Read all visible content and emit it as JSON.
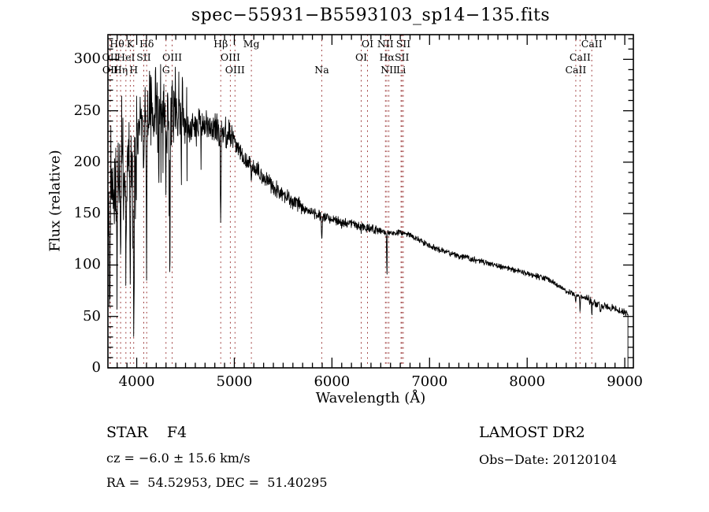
{
  "title": "spec−55931−B5593103_sp14−135.fits",
  "colors": {
    "background": "#ffffff",
    "curve": "#000000",
    "frame": "#000000",
    "text": "#000000",
    "line_marker": "#993333"
  },
  "axes": {
    "xlabel": "Wavelength (Å)",
    "ylabel": "Flux (relative)",
    "x_tick_labels": [
      "4000",
      "5000",
      "6000",
      "7000",
      "8000",
      "9000"
    ],
    "y_tick_labels": [
      "0",
      "50",
      "100",
      "150",
      "200",
      "250",
      "300"
    ]
  },
  "spectral_line_markers": [
    {
      "label": "Hθ",
      "wl": 3798,
      "row": 0
    },
    {
      "label": "K",
      "wl": 3934,
      "row": 0
    },
    {
      "label": "Hδ",
      "wl": 4102,
      "row": 0
    },
    {
      "label": "Hβ",
      "wl": 4861,
      "row": 0
    },
    {
      "label": "Mg",
      "wl": 5175,
      "row": 0
    },
    {
      "label": "OI",
      "wl": 6364,
      "row": 0
    },
    {
      "label": "NII",
      "wl": 6548,
      "row": 0
    },
    {
      "label": "SII",
      "wl": 6731,
      "row": 0
    },
    {
      "label": "CaII",
      "wl": 8662,
      "row": 0
    },
    {
      "label": "OII",
      "wl": 3726,
      "row": 1
    },
    {
      "label": "HeI",
      "wl": 3889,
      "row": 1
    },
    {
      "label": "SII",
      "wl": 4072,
      "row": 1
    },
    {
      "label": "OIII",
      "wl": 4363,
      "row": 1
    },
    {
      "label": "OIII",
      "wl": 4959,
      "row": 1
    },
    {
      "label": "OI",
      "wl": 6300,
      "row": 1
    },
    {
      "label": "Hα",
      "wl": 6563,
      "row": 1
    },
    {
      "label": "SII",
      "wl": 6717,
      "row": 1
    },
    {
      "label": "CaII",
      "wl": 8542,
      "row": 1
    },
    {
      "label": "OII",
      "wl": 3729,
      "row": 2
    },
    {
      "label": "Hη",
      "wl": 3835,
      "row": 2
    },
    {
      "label": "H",
      "wl": 3969,
      "row": 2
    },
    {
      "label": "G",
      "wl": 4300,
      "row": 2
    },
    {
      "label": "OIII",
      "wl": 5007,
      "row": 2
    },
    {
      "label": "Na",
      "wl": 5896,
      "row": 2
    },
    {
      "label": "NII",
      "wl": 6583,
      "row": 2
    },
    {
      "label": "Li",
      "wl": 6708,
      "row": 2
    },
    {
      "label": "CaII",
      "wl": 8498,
      "row": 2
    }
  ],
  "footer": {
    "left_line1": "STAR    F4",
    "left_line2": "cz = −6.0 ± 15.6 km/s",
    "left_line3": "RA =  54.52953, DEC =  51.40295",
    "right_line1": "LAMOST DR2",
    "right_line2": "Obs−Date: 20120104"
  },
  "chart_data": {
    "type": "line",
    "title": "spec−55931−B5593103_sp14−135.fits",
    "xlabel": "Wavelength (Å)",
    "ylabel": "Flux (relative)",
    "xlim": [
      3705,
      9088
    ],
    "ylim": [
      0,
      324
    ],
    "x_major_ticks": [
      4000,
      5000,
      6000,
      7000,
      8000,
      9000
    ],
    "x_minor_step": 100,
    "y_major_ticks": [
      0,
      50,
      100,
      150,
      200,
      250,
      300
    ],
    "y_minor_step": 10,
    "grid": false,
    "legend": "none",
    "series_name": "observed flux (relative)",
    "continuum_anchors": [
      [
        3705,
        150
      ],
      [
        3750,
        170
      ],
      [
        3800,
        180
      ],
      [
        3850,
        190
      ],
      [
        3900,
        196
      ],
      [
        3950,
        205
      ],
      [
        4000,
        220
      ],
      [
        4050,
        235
      ],
      [
        4100,
        245
      ],
      [
        4150,
        250
      ],
      [
        4200,
        252
      ],
      [
        4250,
        252
      ],
      [
        4300,
        248
      ],
      [
        4350,
        245
      ],
      [
        4400,
        242
      ],
      [
        4450,
        240
      ],
      [
        4500,
        236
      ],
      [
        4550,
        233
      ],
      [
        4600,
        235
      ],
      [
        4650,
        237
      ],
      [
        4700,
        235
      ],
      [
        4750,
        233
      ],
      [
        4800,
        231
      ],
      [
        4900,
        228
      ],
      [
        5000,
        220
      ],
      [
        5100,
        203
      ],
      [
        5200,
        196
      ],
      [
        5300,
        185
      ],
      [
        5400,
        176
      ],
      [
        5500,
        168
      ],
      [
        5600,
        162
      ],
      [
        5700,
        156
      ],
      [
        5800,
        151
      ],
      [
        5900,
        147
      ],
      [
        6000,
        144
      ],
      [
        6100,
        141
      ],
      [
        6200,
        140
      ],
      [
        6300,
        138
      ],
      [
        6400,
        135
      ],
      [
        6500,
        133
      ],
      [
        6600,
        131
      ],
      [
        6700,
        132
      ],
      [
        6800,
        129
      ],
      [
        6900,
        124
      ],
      [
        7000,
        119
      ],
      [
        7100,
        115
      ],
      [
        7200,
        112
      ],
      [
        7300,
        109
      ],
      [
        7400,
        107
      ],
      [
        7500,
        104
      ],
      [
        7600,
        101
      ],
      [
        7700,
        99
      ],
      [
        7800,
        97
      ],
      [
        7900,
        94
      ],
      [
        8000,
        92
      ],
      [
        8100,
        89
      ],
      [
        8200,
        87
      ],
      [
        8300,
        81
      ],
      [
        8400,
        75
      ],
      [
        8500,
        71
      ],
      [
        8600,
        68
      ],
      [
        8700,
        62
      ],
      [
        8800,
        60
      ],
      [
        8900,
        57
      ],
      [
        9000,
        54
      ],
      [
        9029,
        52
      ]
    ],
    "absorption_features": [
      [
        3726,
        70,
        5
      ],
      [
        3798,
        95,
        5
      ],
      [
        3835,
        110,
        5
      ],
      [
        3889,
        130,
        5
      ],
      [
        3934,
        140,
        5
      ],
      [
        3969,
        170,
        5
      ],
      [
        4072,
        55,
        5
      ],
      [
        4102,
        140,
        5
      ],
      [
        4227,
        70,
        4
      ],
      [
        4300,
        85,
        7
      ],
      [
        4340,
        160,
        5
      ],
      [
        4861,
        95,
        4.5
      ],
      [
        5175,
        16,
        7
      ],
      [
        5896,
        22,
        5
      ],
      [
        6300,
        6,
        4
      ],
      [
        6563,
        42,
        4
      ],
      [
        8498,
        9,
        4
      ],
      [
        8542,
        14,
        4
      ],
      [
        8662,
        13,
        4
      ],
      [
        8750,
        7,
        5
      ]
    ],
    "noise_regions": [
      [
        3705,
        4000,
        46
      ],
      [
        4000,
        4460,
        36
      ],
      [
        4460,
        5000,
        19
      ],
      [
        5000,
        5700,
        10
      ],
      [
        5700,
        6500,
        6
      ],
      [
        6500,
        7600,
        3.5
      ],
      [
        7600,
        8600,
        3.2
      ],
      [
        8600,
        9040,
        4.5
      ]
    ],
    "noise_seed": 20120104,
    "sample_step": 3,
    "spectrum_end": {
      "wavelength": 9032,
      "drops_to": 0
    }
  }
}
